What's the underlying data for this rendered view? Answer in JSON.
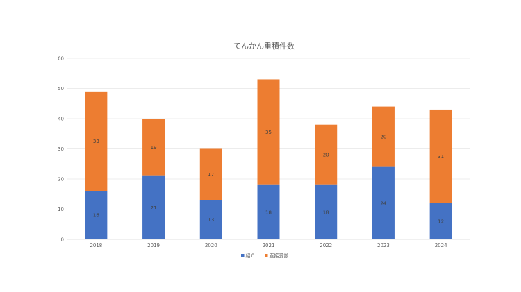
{
  "chart_data": {
    "type": "bar",
    "stacked": true,
    "title": "てんかん重積件数",
    "xlabel": "",
    "ylabel": "",
    "categories": [
      "2018",
      "2019",
      "2020",
      "2021",
      "2022",
      "2023",
      "2024"
    ],
    "series": [
      {
        "name": "紹介",
        "color": "#4472c4",
        "values": [
          16,
          21,
          13,
          18,
          18,
          24,
          12
        ]
      },
      {
        "name": "直接受診",
        "color": "#ed7d31",
        "values": [
          33,
          19,
          17,
          35,
          20,
          20,
          31
        ]
      }
    ],
    "ylim": [
      0,
      60
    ],
    "yticks": [
      "0",
      "10",
      "20",
      "30",
      "40",
      "50",
      "60"
    ],
    "grid": true,
    "legend": "bottom"
  }
}
